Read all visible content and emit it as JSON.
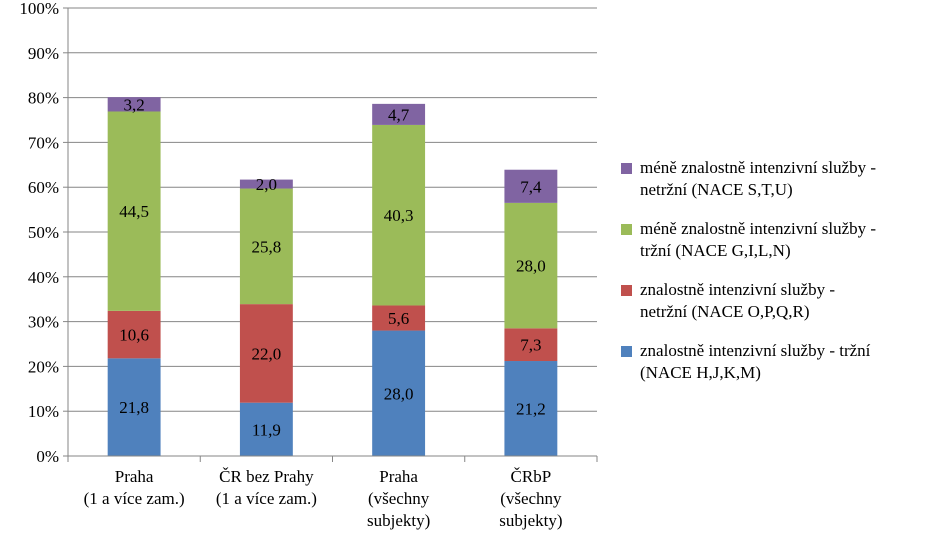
{
  "chart_data": {
    "type": "stacked-bar-100",
    "categories": [
      [
        "Praha",
        "(1 a více zam.)"
      ],
      [
        "ČR bez Prahy",
        "(1 a více zam.)"
      ],
      [
        "Praha",
        "(všechny",
        "subjekty)"
      ],
      [
        "ČRbP",
        "(všechny",
        "subjekty)"
      ]
    ],
    "series": [
      {
        "name": [
          "znalostně intenzivní služby - tržní",
          "(NACE H,J,K,M)"
        ],
        "color": "#4F81BD",
        "values": [
          21.8,
          11.9,
          28.0,
          21.2
        ],
        "labels": [
          "21,8",
          "11,9",
          "28,0",
          "21,2"
        ]
      },
      {
        "name": [
          "znalostně intenzivní služby -",
          "netržní (NACE O,P,Q,R)"
        ],
        "color": "#C0504D",
        "values": [
          10.6,
          22.0,
          5.6,
          7.3
        ],
        "labels": [
          "10,6",
          "22,0",
          "5,6",
          "7,3"
        ]
      },
      {
        "name": [
          "méně znalostně intenzivní služby -",
          "tržní (NACE G,I,L,N)"
        ],
        "color": "#9BBB59",
        "values": [
          44.5,
          25.8,
          40.3,
          28.0
        ],
        "labels": [
          "44,5",
          "25,8",
          "40,3",
          "28,0"
        ]
      },
      {
        "name": [
          "méně znalostně intenzivní služby -",
          "netržní (NACE S,T,U)"
        ],
        "color": "#8064A2",
        "values": [
          3.2,
          2.0,
          4.7,
          7.4
        ],
        "labels": [
          "3,2",
          "2,0",
          "4,7",
          "7,4"
        ]
      }
    ],
    "yticks": [
      "0%",
      "10%",
      "20%",
      "30%",
      "40%",
      "50%",
      "60%",
      "70%",
      "80%",
      "90%",
      "100%"
    ],
    "ylim": [
      0,
      100
    ],
    "legend_position": "right"
  }
}
